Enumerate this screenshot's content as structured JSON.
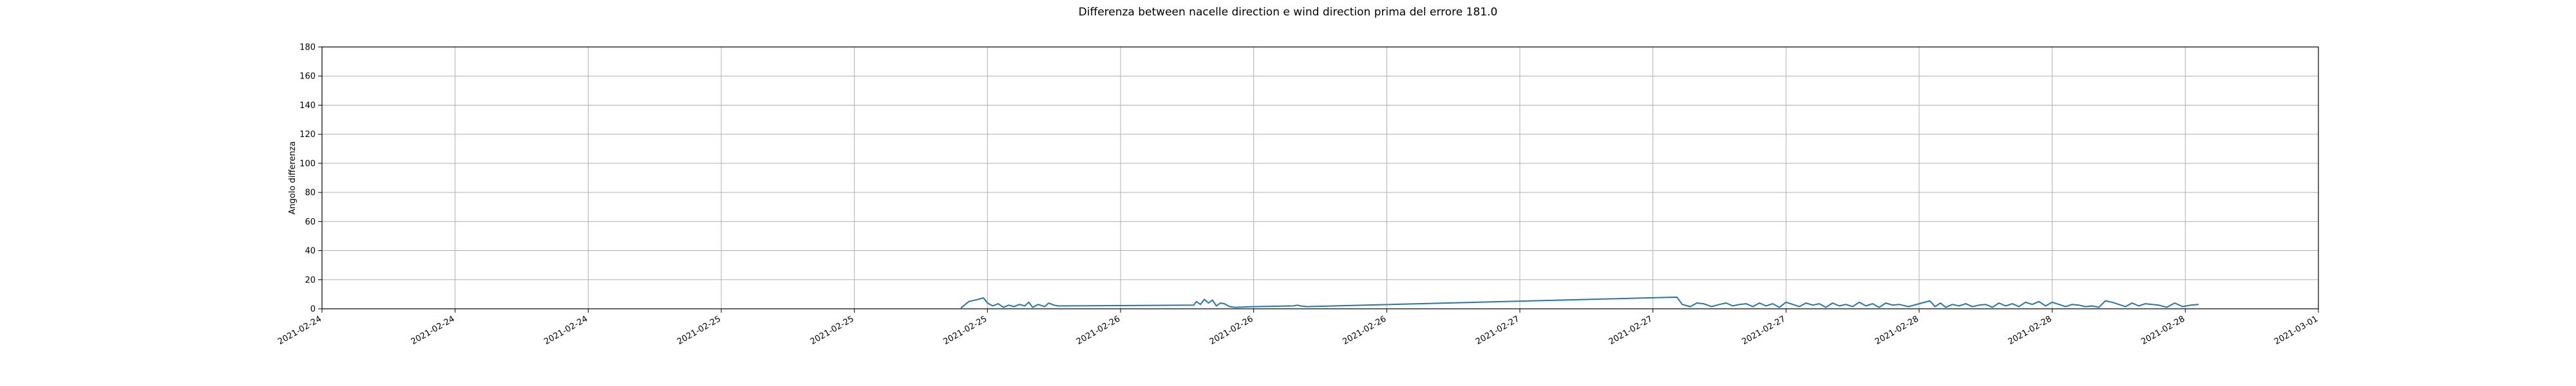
{
  "chart_data": {
    "type": "line",
    "title": "Differenza between nacelle direction e wind direction prima del errore 181.0",
    "xlabel": "",
    "ylabel": "Angolo differenza",
    "ylim": [
      0,
      180
    ],
    "yticks": [
      0,
      20,
      40,
      60,
      80,
      100,
      120,
      140,
      160,
      180
    ],
    "grid": true,
    "xlim": [
      0,
      15
    ],
    "x_unit": "tick index (each tick = one labeled date step)",
    "xtick_labels": [
      "2021-02-24",
      "2021-02-24",
      "2021-02-24",
      "2021-02-25",
      "2021-02-25",
      "2021-02-25",
      "2021-02-26",
      "2021-02-26",
      "2021-02-26",
      "2021-02-27",
      "2021-02-27",
      "2021-02-27",
      "2021-02-28",
      "2021-02-28",
      "2021-02-28",
      "2021-03-01"
    ],
    "series": [
      {
        "name": "Angolo differenza",
        "color": "#1f77b4",
        "x": [
          4.8,
          4.86,
          4.93,
          4.97,
          5.0,
          5.04,
          5.08,
          5.12,
          5.16,
          5.2,
          5.24,
          5.28,
          5.31,
          5.34,
          5.38,
          5.43,
          5.46,
          5.5,
          5.53,
          6.55,
          6.57,
          6.6,
          6.63,
          6.66,
          6.69,
          6.72,
          6.75,
          6.78,
          6.82,
          6.86,
          7.0,
          7.3,
          7.33,
          7.35,
          7.4,
          10.18,
          10.22,
          10.28,
          10.33,
          10.38,
          10.44,
          10.5,
          10.55,
          10.6,
          10.65,
          10.7,
          10.75,
          10.8,
          10.85,
          10.9,
          10.95,
          11.0,
          11.05,
          11.1,
          11.15,
          11.2,
          11.25,
          11.3,
          11.35,
          11.4,
          11.45,
          11.5,
          11.55,
          11.6,
          11.65,
          11.7,
          11.75,
          11.8,
          11.85,
          11.92,
          12.08,
          12.12,
          12.16,
          12.2,
          12.25,
          12.3,
          12.35,
          12.4,
          12.45,
          12.5,
          12.55,
          12.6,
          12.65,
          12.7,
          12.75,
          12.8,
          12.85,
          12.9,
          12.95,
          13.0,
          13.05,
          13.1,
          13.15,
          13.2,
          13.25,
          13.3,
          13.35,
          13.4,
          13.45,
          13.5,
          13.55,
          13.6,
          13.65,
          13.7,
          13.75,
          13.8,
          13.86,
          13.92,
          13.98,
          14.04,
          14.1
        ],
        "values": [
          0.5,
          5.0,
          6.5,
          7.5,
          4.0,
          2.0,
          3.5,
          1.0,
          2.5,
          1.5,
          3.0,
          2.0,
          4.5,
          1.0,
          3.0,
          1.5,
          4.0,
          2.5,
          2.0,
          2.5,
          5.0,
          3.0,
          6.5,
          4.0,
          6.0,
          2.0,
          4.0,
          3.5,
          1.5,
          1.0,
          1.5,
          2.0,
          2.5,
          2.0,
          1.5,
          8.0,
          3.0,
          1.5,
          4.0,
          3.5,
          1.5,
          3.0,
          4.0,
          2.0,
          3.0,
          3.5,
          1.5,
          4.0,
          2.0,
          3.5,
          1.0,
          4.5,
          3.0,
          1.5,
          4.0,
          2.5,
          3.5,
          1.0,
          4.0,
          2.0,
          3.0,
          1.5,
          4.5,
          2.0,
          3.5,
          1.0,
          4.0,
          2.5,
          3.0,
          1.5,
          5.5,
          1.5,
          4.0,
          1.0,
          3.0,
          2.0,
          3.5,
          1.5,
          2.5,
          3.0,
          1.0,
          4.0,
          2.0,
          3.5,
          1.5,
          4.5,
          3.0,
          5.0,
          2.0,
          4.5,
          3.0,
          1.5,
          3.0,
          2.5,
          1.5,
          2.0,
          1.0,
          5.5,
          4.5,
          3.0,
          1.5,
          4.0,
          2.0,
          3.5,
          3.0,
          2.5,
          1.0,
          4.0,
          1.5,
          2.5,
          3.0
        ]
      }
    ]
  }
}
